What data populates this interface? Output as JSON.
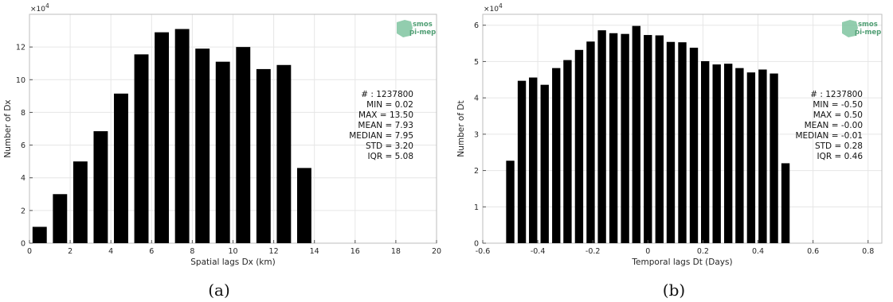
{
  "chart_data": [
    {
      "type": "bar",
      "caption": "(a)",
      "multiplier": "×10",
      "multiplier_exp": "4",
      "xlabel": "Spatial lags Dx (km)",
      "ylabel": "Number of Dx",
      "xlim": [
        0,
        20
      ],
      "ylim": [
        0,
        140000
      ],
      "xticks": [
        0,
        2,
        4,
        6,
        8,
        10,
        12,
        14,
        16,
        18,
        20
      ],
      "yticks": [
        0,
        20000,
        40000,
        60000,
        80000,
        100000,
        120000
      ],
      "ytick_labels": [
        "0",
        "2",
        "4",
        "6",
        "8",
        "10",
        "12"
      ],
      "bar_width": 0.7,
      "x": [
        0.5,
        1.5,
        2.5,
        3.5,
        4.5,
        5.5,
        6.5,
        7.5,
        8.5,
        9.5,
        10.5,
        11.5,
        12.5,
        13.5
      ],
      "values": [
        10000,
        30000,
        50000,
        68500,
        91500,
        115500,
        129000,
        131000,
        119000,
        111000,
        120000,
        106500,
        109000,
        46000
      ],
      "stats": [
        "# : 1237800",
        "MIN = 0.02",
        "MAX =  13.50",
        "MEAN = 7.93",
        "MEDIAN = 7.95",
        "STD = 3.20",
        "IQR = 5.08"
      ],
      "logo": [
        "smos",
        "pi-mep"
      ],
      "grid": true
    },
    {
      "type": "bar",
      "caption": "(b)",
      "multiplier": "×10",
      "multiplier_exp": "4",
      "xlabel": "Temporal lags Dt (Days)",
      "ylabel": "Number of Dt",
      "xlim": [
        -0.6,
        0.85
      ],
      "ylim": [
        0,
        63000
      ],
      "xticks": [
        -0.6,
        -0.4,
        -0.2,
        0,
        0.2,
        0.4,
        0.6,
        0.8
      ],
      "xtick_labels": [
        "-0.6",
        "-0.4",
        "-0.2",
        "0",
        "0.2",
        "0.4",
        "0.6",
        "0.8"
      ],
      "yticks": [
        0,
        10000,
        20000,
        30000,
        40000,
        50000,
        60000
      ],
      "ytick_labels": [
        "0",
        "1",
        "2",
        "3",
        "4",
        "5",
        "6"
      ],
      "bar_width": 0.03,
      "x": [
        -0.5,
        -0.458,
        -0.417,
        -0.375,
        -0.333,
        -0.292,
        -0.25,
        -0.208,
        -0.167,
        -0.125,
        -0.083,
        -0.042,
        0,
        0.042,
        0.083,
        0.125,
        0.167,
        0.208,
        0.25,
        0.292,
        0.333,
        0.375,
        0.417,
        0.458,
        0.5
      ],
      "values": [
        22700,
        44700,
        45600,
        43600,
        48200,
        50400,
        53200,
        55500,
        58600,
        57800,
        57600,
        59800,
        57300,
        57200,
        55400,
        55300,
        53800,
        50100,
        49200,
        49400,
        48200,
        47000,
        47800,
        46700,
        22000
      ],
      "stats": [
        "# : 1237800",
        "MIN = -0.50",
        "MAX =  0.50",
        "MEAN = -0.00",
        "MEDIAN = -0.01",
        "STD = 0.28",
        "IQR = 0.46"
      ],
      "logo": [
        "smos",
        "pi-mep"
      ],
      "grid": true
    }
  ]
}
